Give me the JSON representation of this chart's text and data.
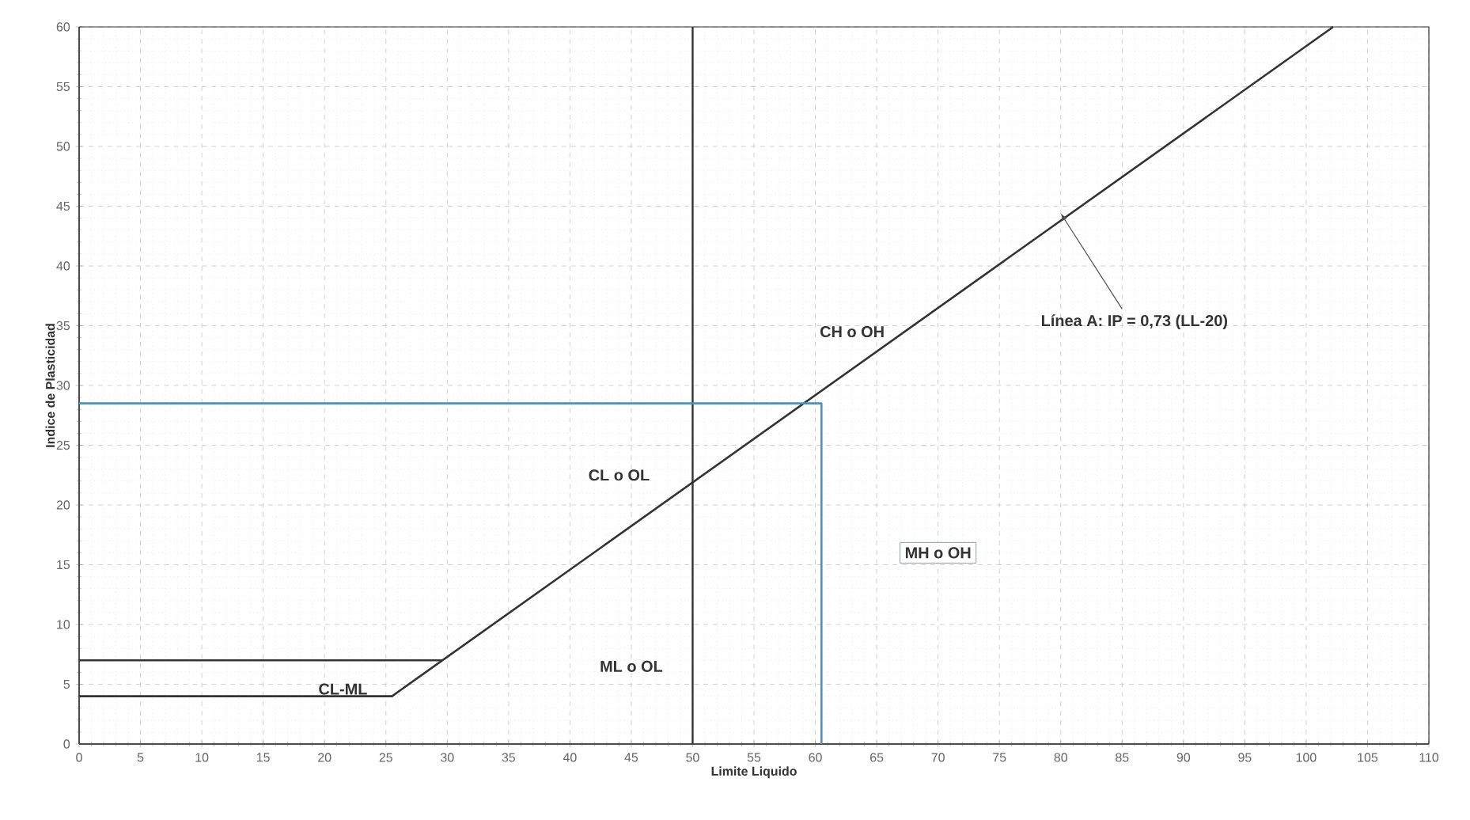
{
  "chart_data": {
    "type": "line",
    "xlabel": "Limite Liquido",
    "ylabel": "Indice de Plasticidad",
    "xlim": [
      0,
      110
    ],
    "ylim": [
      0,
      60
    ],
    "xticks": [
      0,
      5,
      10,
      15,
      20,
      25,
      30,
      35,
      40,
      45,
      50,
      55,
      60,
      65,
      70,
      75,
      80,
      85,
      90,
      95,
      100,
      105,
      110
    ],
    "yticks": [
      0,
      5,
      10,
      15,
      20,
      25,
      30,
      35,
      40,
      45,
      50,
      55,
      60
    ],
    "grid": true,
    "marker": "none",
    "line_style": "solid",
    "series": [
      {
        "color": "#333333",
        "x": [
          0,
          25.5,
          102.2
        ],
        "values": [
          4,
          4,
          60
        ]
      },
      {
        "color": "#333333",
        "x": [
          0,
          29.6
        ],
        "values": [
          7,
          7
        ]
      },
      {
        "color": "#4f8fc0",
        "x": [
          0,
          60.5,
          60.5
        ],
        "values": [
          28.5,
          28.5,
          0
        ]
      }
    ],
    "ref_lines": [
      {
        "axis": "x",
        "value": 50,
        "color": "#333333"
      }
    ],
    "annotations": [
      "CL o OL",
      "ML o OL",
      "CH o OH",
      "MH o OH",
      "CL-ML",
      {
        "text": "Línea A: IP = 0,73 (LL-20)",
        "x": 80,
        "y": 44.4
      }
    ]
  }
}
